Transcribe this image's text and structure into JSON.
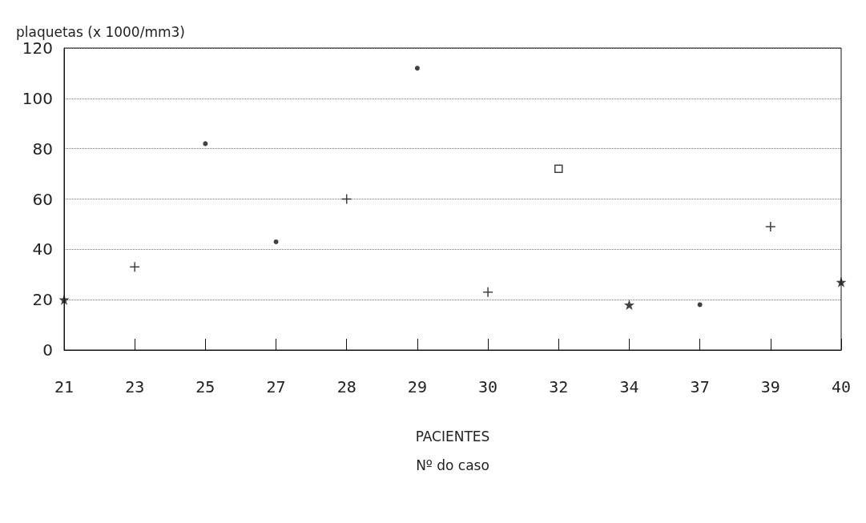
{
  "chart_data": {
    "type": "scatter",
    "ylabel": "plaquetas (x 1000/mm3)",
    "xlabel": "PACIENTES\nNº do caso",
    "categories": [
      "21",
      "23",
      "25",
      "27",
      "28",
      "29",
      "30",
      "32",
      "34",
      "37",
      "39",
      "40"
    ],
    "series": [
      {
        "color": "#111111",
        "marker": "star",
        "values": [
          20,
          null,
          null,
          null,
          null,
          null,
          null,
          null,
          18,
          null,
          null,
          27
        ]
      },
      {
        "color": "#111111",
        "marker": "cross",
        "values": [
          null,
          33,
          null,
          null,
          60,
          null,
          23,
          null,
          null,
          null,
          49,
          null
        ]
      },
      {
        "color": "#111111",
        "marker": "circle",
        "values": [
          null,
          null,
          82,
          43,
          null,
          112,
          null,
          null,
          null,
          18,
          null,
          null
        ]
      },
      {
        "color": "#111111",
        "marker": "square",
        "values": [
          null,
          null,
          null,
          null,
          null,
          null,
          null,
          72,
          null,
          null,
          null,
          null
        ]
      }
    ],
    "ylim": [
      0,
      120
    ],
    "yticks": [
      0,
      20,
      40,
      60,
      80,
      100,
      120
    ],
    "grid": "y"
  }
}
